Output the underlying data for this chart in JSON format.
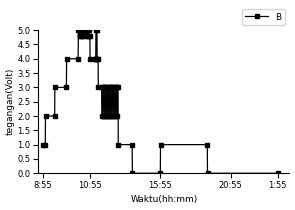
{
  "xlabel": "Waktu(hh:mm)",
  "ylabel": "tegangan(Volt)",
  "ylim": [
    0.0,
    5.0
  ],
  "yticks": [
    0.0,
    0.5,
    1.0,
    1.5,
    2.0,
    2.5,
    3.0,
    3.5,
    4.0,
    4.5,
    5.0
  ],
  "legend_label": "B",
  "line_color": "#000000",
  "marker": "s",
  "markersize": 3.5,
  "linewidth": 0.9,
  "background_color": "#ffffff",
  "x_numeric": [
    0,
    10,
    11,
    50,
    51,
    100,
    101,
    150,
    151,
    155,
    156,
    160,
    161,
    165,
    166,
    170,
    171,
    175,
    176,
    180,
    181,
    185,
    186,
    190,
    191,
    195,
    196,
    200,
    201,
    220,
    221,
    225,
    226,
    230,
    231,
    235,
    236,
    250,
    251,
    255,
    256,
    260,
    261,
    265,
    266,
    270,
    271,
    275,
    276,
    280,
    281,
    285,
    286,
    290,
    291,
    295,
    296,
    300,
    301,
    305,
    306,
    310,
    311,
    315,
    316,
    320,
    321,
    380,
    381,
    500,
    501,
    700,
    701,
    1000
  ],
  "y_numeric": [
    1.0,
    1.0,
    2.0,
    2.0,
    3.0,
    3.0,
    4.0,
    4.0,
    5.0,
    5.0,
    4.8,
    4.8,
    5.0,
    5.0,
    4.8,
    4.8,
    5.0,
    5.0,
    4.9,
    4.9,
    5.0,
    5.0,
    4.8,
    4.8,
    5.0,
    5.0,
    4.8,
    4.8,
    4.0,
    4.0,
    4.0,
    4.0,
    5.0,
    5.0,
    4.0,
    4.0,
    3.0,
    3.0,
    2.0,
    2.0,
    3.0,
    3.0,
    2.0,
    2.0,
    3.0,
    3.0,
    2.0,
    2.0,
    3.0,
    3.0,
    2.0,
    2.0,
    3.0,
    3.0,
    2.0,
    2.0,
    3.0,
    3.0,
    2.0,
    2.0,
    3.0,
    3.0,
    2.0,
    2.0,
    3.0,
    3.0,
    1.0,
    1.0,
    0.0,
    0.0,
    1.0,
    1.0,
    0.0,
    0.0
  ],
  "xtick_positions": [
    0,
    200,
    500,
    800,
    1000
  ],
  "xtick_labels": [
    "8:55",
    "10:55",
    "15:55",
    "20:55",
    "1:55"
  ]
}
